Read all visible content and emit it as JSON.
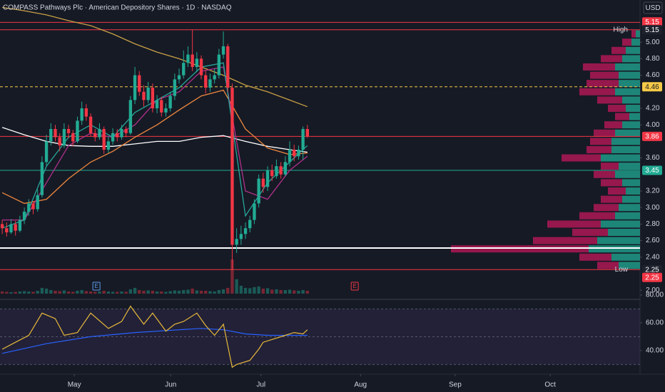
{
  "chart_data": {
    "type": "candlestick",
    "title": "COMPASS Pathways Plc · American Depository Shares · 1D · NASDAQ",
    "currency": "USD",
    "xlim": [
      -0.5,
      144.2
    ],
    "ylim": [
      1.95,
      5.51
    ],
    "yticks": [
      {
        "value": 2.0,
        "label": "2.00"
      },
      {
        "value": 2.4,
        "label": "2.40"
      },
      {
        "value": 2.6,
        "label": "2.60"
      },
      {
        "value": 2.8,
        "label": "2.80"
      },
      {
        "value": 3.0,
        "label": "3.00"
      },
      {
        "value": 3.2,
        "label": "3.20"
      },
      {
        "value": 3.6,
        "label": "3.60"
      },
      {
        "value": 4.0,
        "label": "4.00"
      },
      {
        "value": 4.2,
        "label": "4.20"
      },
      {
        "value": 4.6,
        "label": "4.60"
      },
      {
        "value": 4.8,
        "label": "4.80"
      },
      {
        "value": 5.0,
        "label": "5.00"
      }
    ],
    "time_ticks": [
      {
        "value": 16.3,
        "label": "May"
      },
      {
        "value": 38.1,
        "label": "Jun"
      },
      {
        "value": 58.5,
        "label": "Jul"
      },
      {
        "value": 81.0,
        "label": "Aug"
      },
      {
        "value": 102.4,
        "label": "Sep"
      },
      {
        "value": 123.9,
        "label": "Oct"
      }
    ],
    "up_color": "#22ab94",
    "down_color": "#f23645",
    "ohlc": [
      [
        2.8,
        2.85,
        2.68,
        2.75
      ],
      [
        2.75,
        2.82,
        2.65,
        2.7
      ],
      [
        2.7,
        2.86,
        2.68,
        2.8
      ],
      [
        2.8,
        2.84,
        2.66,
        2.72
      ],
      [
        2.72,
        2.9,
        2.7,
        2.85
      ],
      [
        2.85,
        3.0,
        2.8,
        2.95
      ],
      [
        2.95,
        3.1,
        2.9,
        3.05
      ],
      [
        3.05,
        3.08,
        2.92,
        2.98
      ],
      [
        2.98,
        3.22,
        2.95,
        3.15
      ],
      [
        3.15,
        3.62,
        3.12,
        3.55
      ],
      [
        3.55,
        3.88,
        3.5,
        3.8
      ],
      [
        3.8,
        4.02,
        3.75,
        3.95
      ],
      [
        3.95,
        4.0,
        3.8,
        3.85
      ],
      [
        3.85,
        3.9,
        3.68,
        3.75
      ],
      [
        3.75,
        4.02,
        3.72,
        3.95
      ],
      [
        3.95,
        4.0,
        3.84,
        3.9
      ],
      [
        3.9,
        3.94,
        3.74,
        3.8
      ],
      [
        3.8,
        4.1,
        3.78,
        4.05
      ],
      [
        4.05,
        4.28,
        4.0,
        4.2
      ],
      [
        4.2,
        4.25,
        4.05,
        4.1
      ],
      [
        4.1,
        4.14,
        3.86,
        3.9
      ],
      [
        3.9,
        3.95,
        3.8,
        3.85
      ],
      [
        3.85,
        4.02,
        3.82,
        3.95
      ],
      [
        3.95,
        3.98,
        3.65,
        3.7
      ],
      [
        3.7,
        3.86,
        3.66,
        3.8
      ],
      [
        3.8,
        3.96,
        3.76,
        3.9
      ],
      [
        3.9,
        3.95,
        3.8,
        3.85
      ],
      [
        3.85,
        4.0,
        3.82,
        3.95
      ],
      [
        3.95,
        3.98,
        3.85,
        3.9
      ],
      [
        3.9,
        4.35,
        3.88,
        4.3
      ],
      [
        4.3,
        4.7,
        4.25,
        4.6
      ],
      [
        4.6,
        4.65,
        4.35,
        4.4
      ],
      [
        4.4,
        4.48,
        4.22,
        4.3
      ],
      [
        4.3,
        4.52,
        4.26,
        4.45
      ],
      [
        4.45,
        4.5,
        4.15,
        4.2
      ],
      [
        4.2,
        4.36,
        4.14,
        4.3
      ],
      [
        4.3,
        4.34,
        4.1,
        4.15
      ],
      [
        4.15,
        4.26,
        4.1,
        4.2
      ],
      [
        4.2,
        4.4,
        4.16,
        4.35
      ],
      [
        4.35,
        4.62,
        4.3,
        4.55
      ],
      [
        4.55,
        4.68,
        4.5,
        4.6
      ],
      [
        4.6,
        4.9,
        4.56,
        4.75
      ],
      [
        4.75,
        4.95,
        4.7,
        4.85
      ],
      [
        4.85,
        5.15,
        4.65,
        4.7
      ],
      [
        4.7,
        4.88,
        4.64,
        4.8
      ],
      [
        4.8,
        4.84,
        4.55,
        4.6
      ],
      [
        4.6,
        4.66,
        4.38,
        4.45
      ],
      [
        4.45,
        4.62,
        4.4,
        4.55
      ],
      [
        4.55,
        4.68,
        4.5,
        4.6
      ],
      [
        4.6,
        4.92,
        4.56,
        4.85
      ],
      [
        4.85,
        5.13,
        4.8,
        4.95
      ],
      [
        4.95,
        4.98,
        4.4,
        4.45
      ],
      [
        4.45,
        4.5,
        2.25,
        2.55
      ],
      [
        2.55,
        2.75,
        2.45,
        2.62
      ],
      [
        2.62,
        2.78,
        2.55,
        2.68
      ],
      [
        2.68,
        2.82,
        2.62,
        2.75
      ],
      [
        2.75,
        2.9,
        2.7,
        2.85
      ],
      [
        2.85,
        3.1,
        2.8,
        3.05
      ],
      [
        3.05,
        3.4,
        3.0,
        3.35
      ],
      [
        3.35,
        3.42,
        3.18,
        3.25
      ],
      [
        3.25,
        3.5,
        3.2,
        3.45
      ],
      [
        3.45,
        3.52,
        3.32,
        3.38
      ],
      [
        3.38,
        3.58,
        3.35,
        3.5
      ],
      [
        3.5,
        3.55,
        3.35,
        3.4
      ],
      [
        3.4,
        3.62,
        3.38,
        3.55
      ],
      [
        3.55,
        3.8,
        3.5,
        3.7
      ],
      [
        3.7,
        3.76,
        3.56,
        3.62
      ],
      [
        3.62,
        3.75,
        3.58,
        3.7
      ],
      [
        3.7,
        3.98,
        3.58,
        3.95
      ],
      [
        3.95,
        4.0,
        3.84,
        3.86
      ]
    ],
    "volume": [
      0.6,
      0.5,
      0.4,
      0.5,
      0.6,
      0.7,
      0.6,
      0.5,
      0.8,
      1.6,
      1.4,
      1.0,
      0.8,
      0.7,
      0.9,
      0.6,
      0.5,
      0.8,
      1.0,
      0.7,
      0.6,
      0.5,
      0.6,
      0.8,
      0.6,
      0.5,
      0.5,
      0.6,
      0.5,
      1.2,
      1.6,
      1.0,
      0.8,
      0.9,
      0.8,
      0.6,
      0.6,
      0.5,
      0.7,
      0.9,
      0.8,
      1.0,
      1.1,
      1.4,
      0.9,
      0.8,
      0.8,
      0.7,
      0.6,
      1.0,
      1.2,
      1.6,
      9.5,
      4.0,
      2.2,
      1.6,
      1.5,
      1.8,
      2.0,
      1.4,
      1.5,
      1.1,
      1.2,
      1.0,
      1.0,
      1.1,
      0.9,
      0.8,
      1.0,
      0.8
    ],
    "line_x": [
      0,
      5,
      10,
      15,
      20,
      25,
      30,
      35,
      40,
      45,
      50,
      55,
      60,
      65,
      69
    ],
    "lines": [
      {
        "color": "#c8a046",
        "values": [
          5.42,
          5.38,
          5.33,
          5.26,
          5.2,
          5.1,
          4.98,
          4.88,
          4.8,
          4.7,
          4.6,
          4.48,
          4.4,
          4.3,
          4.22
        ]
      },
      {
        "color": "#ffffff",
        "values": [
          3.97,
          3.88,
          3.8,
          3.75,
          3.74,
          3.74,
          3.77,
          3.8,
          3.8,
          3.85,
          3.87,
          3.8,
          3.74,
          3.7,
          3.67
        ]
      },
      {
        "color": "#f0883e",
        "values": [
          3.18,
          3.05,
          3.1,
          3.35,
          3.55,
          3.68,
          3.85,
          4.0,
          4.18,
          4.35,
          4.42,
          3.95,
          3.72,
          3.64,
          3.66
        ]
      },
      {
        "color": "#b0308a",
        "values": [
          2.85,
          2.85,
          3.3,
          3.75,
          3.9,
          3.85,
          4.0,
          4.3,
          4.4,
          4.65,
          4.7,
          3.2,
          3.1,
          3.45,
          3.62
        ]
      },
      {
        "color": "#26a69a",
        "values": [
          2.75,
          2.85,
          3.5,
          3.85,
          4.0,
          3.85,
          4.15,
          4.3,
          4.45,
          4.7,
          4.75,
          2.9,
          3.3,
          3.55,
          3.75
        ]
      }
    ],
    "levels": [
      {
        "value": 5.24,
        "color": "#f23645"
      },
      {
        "value": 5.15,
        "color": "#f23645"
      },
      {
        "value": 4.46,
        "color": "#f7c948",
        "dashed": true
      },
      {
        "value": 3.86,
        "color": "#f23645"
      },
      {
        "value": 3.45,
        "color": "#22ab94"
      },
      {
        "value": 2.51,
        "color": "#ffffff",
        "width": 2
      },
      {
        "value": 2.25,
        "color": "#f23645"
      }
    ],
    "badges": [
      {
        "label": "5.15",
        "value": 5.15,
        "color": "#f23645"
      },
      {
        "name": "High",
        "label": "5.15",
        "value": 5.15,
        "color": "#1e222d"
      },
      {
        "label": "4.46",
        "value": 4.46,
        "color": "#f7c948"
      },
      {
        "label": "3.86",
        "value": 3.86,
        "color": "#f23645"
      },
      {
        "label": "3.45",
        "value": 3.45,
        "color": "#22ab94"
      },
      {
        "name": "Low",
        "label": "2.25",
        "value": 2.25,
        "color": "#1e222d"
      },
      {
        "label": "2.25",
        "value": 2.25,
        "color": "#f23645"
      }
    ],
    "events": [
      {
        "x": 21.3,
        "label": "E",
        "color": "#5d9cec"
      },
      {
        "x": 79.7,
        "label": "E",
        "color": "#f23645"
      }
    ],
    "profile": {
      "prices": [
        2.3,
        2.4,
        2.5,
        2.6,
        2.7,
        2.8,
        2.9,
        3.0,
        3.1,
        3.2,
        3.3,
        3.4,
        3.5,
        3.6,
        3.7,
        3.8,
        3.9,
        4.0,
        4.1,
        4.2,
        4.3,
        4.4,
        4.5,
        4.6,
        4.7,
        4.8,
        4.9,
        5.0,
        5.1
      ],
      "up": [
        30,
        40,
        72,
        60,
        45,
        55,
        35,
        30,
        25,
        20,
        25,
        35,
        30,
        55,
        40,
        40,
        35,
        25,
        15,
        20,
        25,
        35,
        30,
        30,
        35,
        25,
        20,
        12,
        6
      ],
      "down": [
        30,
        45,
        193,
        90,
        50,
        75,
        50,
        35,
        30,
        25,
        30,
        30,
        25,
        55,
        35,
        30,
        30,
        25,
        20,
        25,
        35,
        50,
        45,
        40,
        45,
        30,
        20,
        13,
        6
      ]
    },
    "rsi": {
      "ylim": [
        25.6,
        80.5
      ],
      "yticks": [
        {
          "value": 40,
          "label": "40.00"
        },
        {
          "value": 60,
          "label": "60.00"
        },
        {
          "value": 80,
          "label": "80.00"
        }
      ],
      "bands": [
        70,
        50,
        30
      ],
      "x": [
        0,
        3,
        6,
        9,
        12,
        14,
        17,
        20,
        24,
        27,
        29,
        32,
        34,
        37,
        39,
        41,
        44,
        46,
        48,
        50,
        52,
        53,
        56,
        58,
        59,
        62,
        64,
        66,
        68,
        69
      ],
      "values": [
        41,
        46,
        51,
        67,
        63,
        51,
        53,
        67,
        56,
        61,
        72,
        59,
        67,
        54,
        59,
        61,
        67,
        58,
        51,
        59,
        28,
        30,
        33,
        41,
        46,
        49,
        51,
        53,
        52,
        55
      ],
      "ma_x": [
        0,
        10,
        20,
        30,
        40,
        45,
        50,
        55,
        60,
        69
      ],
      "ma": [
        38,
        45,
        50,
        53,
        55,
        56,
        55,
        52,
        51,
        51
      ]
    }
  }
}
